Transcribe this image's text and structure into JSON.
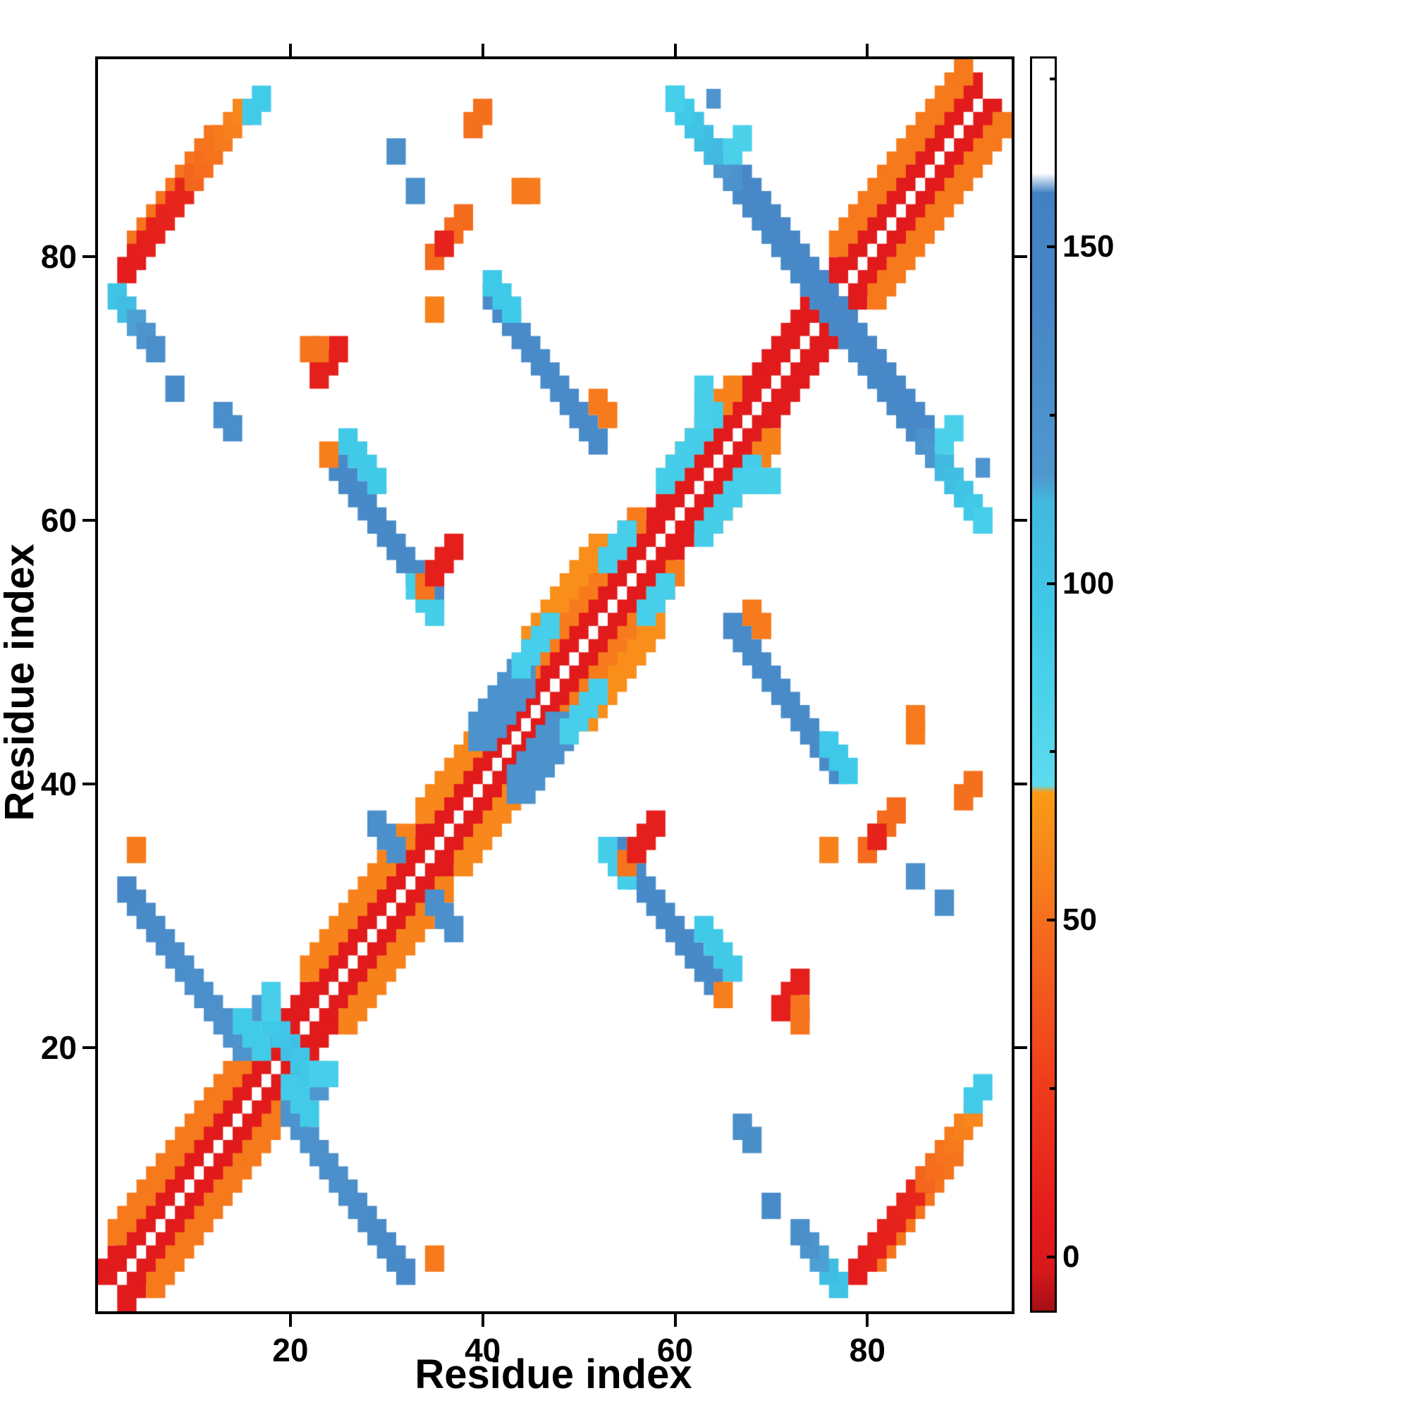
{
  "figure": {
    "xlabel": "Residue index",
    "ylabel": "Residue index"
  },
  "chart_data": {
    "type": "heatmap",
    "title": "",
    "xlabel": "Residue index",
    "ylabel": "Residue index",
    "x_range": [
      0,
      95
    ],
    "y_range": [
      0,
      95
    ],
    "x_ticks": [
      20,
      40,
      60,
      80
    ],
    "y_ticks": [
      20,
      40,
      60,
      80
    ],
    "grid": false,
    "background_value": "white",
    "symmetric": true,
    "colorbar": {
      "min": -8,
      "max": 178,
      "ticks": [
        0,
        50,
        100,
        150
      ],
      "minor_ticks": [
        25,
        75,
        125,
        175
      ],
      "position": "right"
    },
    "colormap_stops": [
      [
        -8,
        "#a50f15"
      ],
      [
        -2,
        "#d7191c"
      ],
      [
        5,
        "#e31a1c"
      ],
      [
        25,
        "#ef3b1c"
      ],
      [
        45,
        "#f4641d"
      ],
      [
        60,
        "#f8871c"
      ],
      [
        69,
        "#fa9b15"
      ],
      [
        70,
        "#5cdbee"
      ],
      [
        95,
        "#3fc9e8"
      ],
      [
        112,
        "#41b9e0"
      ],
      [
        116,
        "#4f97cf"
      ],
      [
        140,
        "#4787c7"
      ],
      [
        158,
        "#4180c2"
      ],
      [
        161,
        "#ffffff"
      ],
      [
        178,
        "#ffffff"
      ]
    ],
    "segments_columns": [
      "x",
      "y",
      "dx",
      "dy",
      "n",
      "v_start",
      "v_end",
      "thickness"
    ],
    "segments": [
      [
        1,
        3,
        1,
        1,
        91,
        4,
        4,
        2
      ],
      [
        2,
        6,
        1,
        1,
        15,
        54,
        54,
        2
      ],
      [
        22,
        26,
        1,
        1,
        11,
        58,
        58,
        2
      ],
      [
        34,
        38,
        1,
        1,
        9,
        60,
        60,
        2
      ],
      [
        44,
        48,
        1,
        1,
        13,
        55,
        55,
        2
      ],
      [
        45,
        51,
        1,
        1,
        8,
        63,
        63,
        2
      ],
      [
        60,
        64,
        1,
        1,
        7,
        58,
        58,
        2
      ],
      [
        77,
        81,
        1,
        1,
        14,
        54,
        54,
        2
      ],
      [
        4,
        81,
        1,
        1,
        9,
        52,
        52,
        2
      ],
      [
        3,
        32,
        1,
        -1,
        13,
        138,
        122,
        2
      ],
      [
        15,
        22,
        1,
        -1,
        3,
        92,
        92,
        2
      ],
      [
        17,
        23,
        1,
        -1,
        6,
        118,
        95,
        2
      ],
      [
        18,
        23,
        0,
        1,
        2,
        88,
        88,
        2
      ],
      [
        25,
        64,
        1,
        -1,
        11,
        136,
        136,
        2
      ],
      [
        26,
        66,
        1,
        -1,
        4,
        94,
        94,
        2
      ],
      [
        24,
        65,
        0,
        0,
        1,
        56,
        56,
        2
      ],
      [
        33,
        55,
        1,
        -1,
        3,
        90,
        90,
        2
      ],
      [
        41,
        77,
        1,
        -1,
        12,
        134,
        134,
        2
      ],
      [
        41,
        78,
        1,
        -1,
        3,
        95,
        95,
        2
      ],
      [
        52,
        69,
        1,
        -1,
        2,
        55,
        55,
        2
      ],
      [
        35,
        76,
        0,
        0,
        1,
        58,
        58,
        2
      ],
      [
        60,
        92,
        1,
        -1,
        6,
        88,
        122,
        2
      ],
      [
        65,
        87,
        1,
        -1,
        22,
        136,
        136,
        2
      ],
      [
        67,
        86,
        1,
        -1,
        16,
        138,
        138,
        2
      ],
      [
        86,
        66,
        1,
        -1,
        7,
        124,
        88,
        2
      ],
      [
        3,
        79,
        1,
        1,
        8,
        6,
        14,
        2
      ],
      [
        10,
        86,
        1,
        1,
        6,
        46,
        60,
        2
      ],
      [
        16,
        91,
        1,
        1,
        2,
        92,
        92,
        2
      ],
      [
        2,
        77,
        1,
        -1,
        5,
        100,
        130,
        2
      ],
      [
        8,
        70,
        0,
        0,
        1,
        134,
        134,
        2
      ],
      [
        59,
        63,
        1,
        1,
        6,
        90,
        90,
        2
      ],
      [
        63,
        68,
        0,
        1,
        3,
        86,
        86,
        2
      ],
      [
        40,
        44,
        1,
        1,
        5,
        124,
        124,
        3
      ],
      [
        44,
        49,
        1,
        1,
        4,
        88,
        88,
        2
      ],
      [
        4,
        35,
        0,
        0,
        1,
        55,
        55,
        2
      ],
      [
        34,
        55,
        1,
        1,
        2,
        52,
        52,
        2
      ],
      [
        35,
        56,
        1,
        1,
        3,
        8,
        8,
        2
      ],
      [
        23,
        71,
        1,
        1,
        3,
        8,
        8,
        2
      ],
      [
        22,
        73,
        1,
        0,
        2,
        52,
        52,
        2
      ],
      [
        35,
        80,
        1,
        1,
        4,
        48,
        48,
        2
      ],
      [
        44,
        85,
        1,
        0,
        2,
        55,
        55,
        2
      ],
      [
        31,
        88,
        0,
        0,
        1,
        130,
        130,
        2
      ],
      [
        33,
        85,
        0,
        0,
        1,
        128,
        128,
        2
      ],
      [
        13,
        68,
        1,
        -1,
        2,
        130,
        130,
        2
      ],
      [
        29,
        37,
        1,
        -1,
        3,
        128,
        128,
        2
      ],
      [
        39,
        90,
        1,
        1,
        2,
        50,
        50,
        2
      ],
      [
        53,
        57,
        1,
        1,
        3,
        88,
        88,
        2
      ],
      [
        88,
        66,
        1,
        1,
        2,
        85,
        85,
        2
      ],
      [
        92,
        64,
        0,
        0,
        1,
        120,
        120,
        1.5
      ],
      [
        36,
        81,
        0,
        0,
        1,
        10,
        10,
        2
      ]
    ]
  }
}
